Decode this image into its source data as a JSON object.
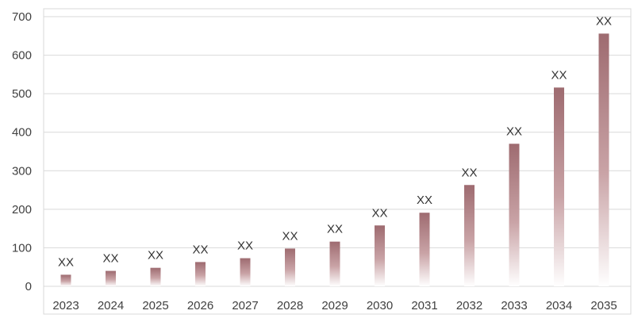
{
  "chart_data": {
    "type": "bar",
    "categories": [
      "2023",
      "2024",
      "2025",
      "2026",
      "2027",
      "2028",
      "2029",
      "2030",
      "2031",
      "2032",
      "2033",
      "2034",
      "2035"
    ],
    "values": [
      30,
      40,
      48,
      63,
      73,
      98,
      116,
      158,
      191,
      263,
      370,
      516,
      656
    ],
    "data_labels": [
      "XX",
      "XX",
      "XX",
      "XX",
      "XX",
      "XX",
      "XX",
      "XX",
      "XX",
      "XX",
      "XX",
      "XX",
      "XX"
    ],
    "ylim": [
      0,
      700
    ],
    "yticks": [
      0,
      100,
      200,
      300,
      400,
      500,
      600,
      700
    ],
    "grid": true,
    "bar_color": "#9e6b70",
    "bar_fade_color": "#ffffff"
  }
}
